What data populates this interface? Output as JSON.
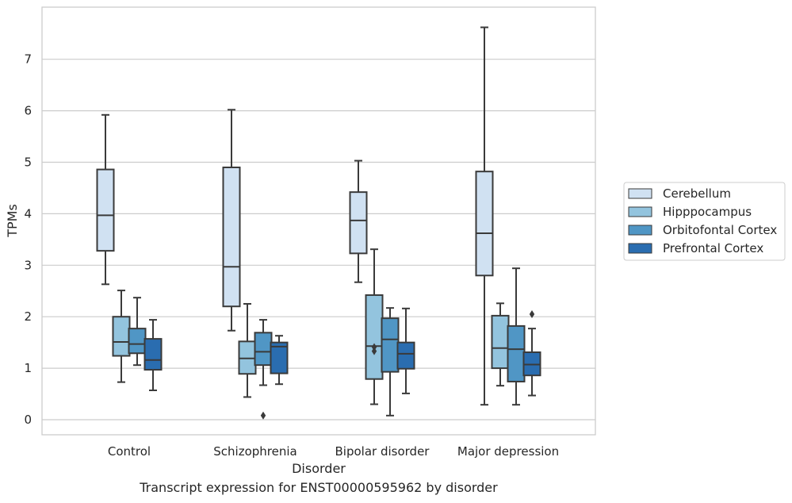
{
  "caption": "Transcript expression for ENST00000595962 by disorder",
  "chart_data": {
    "type": "box",
    "xlabel": "Disorder",
    "ylabel": "TPMs",
    "ylim": [
      -0.3,
      8.0
    ],
    "yticks": [
      0,
      1,
      2,
      3,
      4,
      5,
      6,
      7
    ],
    "categories": [
      "Control",
      "Schizophrenia",
      "Bipolar disorder",
      "Major depression"
    ],
    "grid": "horizontal",
    "legend_position": "right",
    "series": [
      {
        "name": "Cerebellum",
        "color": "#d0e1f2",
        "boxes": [
          {
            "whislo": 2.63,
            "q1": 3.28,
            "med": 3.97,
            "q3": 4.86,
            "whishi": 5.92,
            "fliers": []
          },
          {
            "whislo": 1.73,
            "q1": 2.2,
            "med": 2.97,
            "q3": 4.9,
            "whishi": 6.02,
            "fliers": []
          },
          {
            "whislo": 2.67,
            "q1": 3.23,
            "med": 3.87,
            "q3": 4.42,
            "whishi": 5.03,
            "fliers": []
          },
          {
            "whislo": 0.29,
            "q1": 2.8,
            "med": 3.62,
            "q3": 4.82,
            "whishi": 7.62,
            "fliers": []
          }
        ]
      },
      {
        "name": "Hipppocampus",
        "color": "#93c4de",
        "boxes": [
          {
            "whislo": 0.73,
            "q1": 1.24,
            "med": 1.51,
            "q3": 2.0,
            "whishi": 2.51,
            "fliers": []
          },
          {
            "whislo": 0.44,
            "q1": 0.89,
            "med": 1.19,
            "q3": 1.52,
            "whishi": 2.25,
            "fliers": []
          },
          {
            "whislo": 0.3,
            "q1": 0.79,
            "med": 1.43,
            "q3": 2.42,
            "whishi": 3.31,
            "fliers": [
              1.33,
              1.41
            ]
          },
          {
            "whislo": 0.66,
            "q1": 1.0,
            "med": 1.39,
            "q3": 2.02,
            "whishi": 2.26,
            "fliers": []
          }
        ]
      },
      {
        "name": "Orbitofontal Cortex",
        "color": "#5096c5",
        "boxes": [
          {
            "whislo": 1.06,
            "q1": 1.29,
            "med": 1.47,
            "q3": 1.77,
            "whishi": 2.37,
            "fliers": []
          },
          {
            "whislo": 0.67,
            "q1": 1.06,
            "med": 1.32,
            "q3": 1.69,
            "whishi": 1.94,
            "fliers": [
              0.08
            ]
          },
          {
            "whislo": 0.08,
            "q1": 0.93,
            "med": 1.56,
            "q3": 1.97,
            "whishi": 2.17,
            "fliers": []
          },
          {
            "whislo": 0.29,
            "q1": 0.74,
            "med": 1.37,
            "q3": 1.82,
            "whishi": 2.94,
            "fliers": []
          }
        ]
      },
      {
        "name": "Prefrontal Cortex",
        "color": "#2a6db0",
        "boxes": [
          {
            "whislo": 0.57,
            "q1": 0.97,
            "med": 1.16,
            "q3": 1.57,
            "whishi": 1.94,
            "fliers": []
          },
          {
            "whislo": 0.69,
            "q1": 0.9,
            "med": 1.42,
            "q3": 1.5,
            "whishi": 1.63,
            "fliers": []
          },
          {
            "whislo": 0.51,
            "q1": 0.99,
            "med": 1.28,
            "q3": 1.5,
            "whishi": 2.16,
            "fliers": []
          },
          {
            "whislo": 0.47,
            "q1": 0.86,
            "med": 1.07,
            "q3": 1.31,
            "whishi": 1.77,
            "fliers": [
              2.05
            ]
          }
        ]
      }
    ]
  }
}
